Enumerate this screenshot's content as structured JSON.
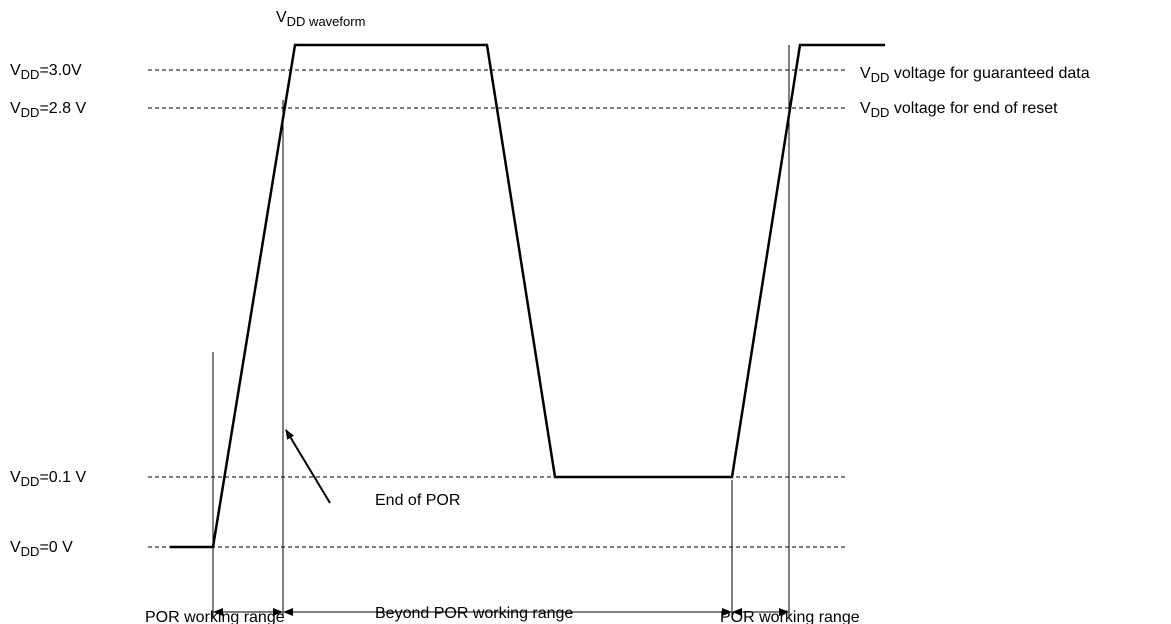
{
  "levels": [
    {
      "base": "V",
      "sub": "DD",
      "text": "=3.0V"
    },
    {
      "base": "V",
      "sub": "DD",
      "text": "=2.8 V"
    },
    {
      "base": "V",
      "sub": "DD",
      "text": "=0.1 V"
    },
    {
      "base": "V",
      "sub": "DD",
      "text": "=0 V"
    }
  ],
  "waveform_label": {
    "base": "V",
    "sub": "DD waveform"
  },
  "right_labels": [
    {
      "base": "V",
      "sub": "DD",
      "text": " voltage for guaranteed data"
    },
    {
      "base": "V",
      "sub": "DD",
      "text": " voltage for end of reset"
    }
  ],
  "annotation": "End of POR",
  "ranges": [
    "POR working range",
    "Beyond POR working range",
    "POR working range"
  ]
}
